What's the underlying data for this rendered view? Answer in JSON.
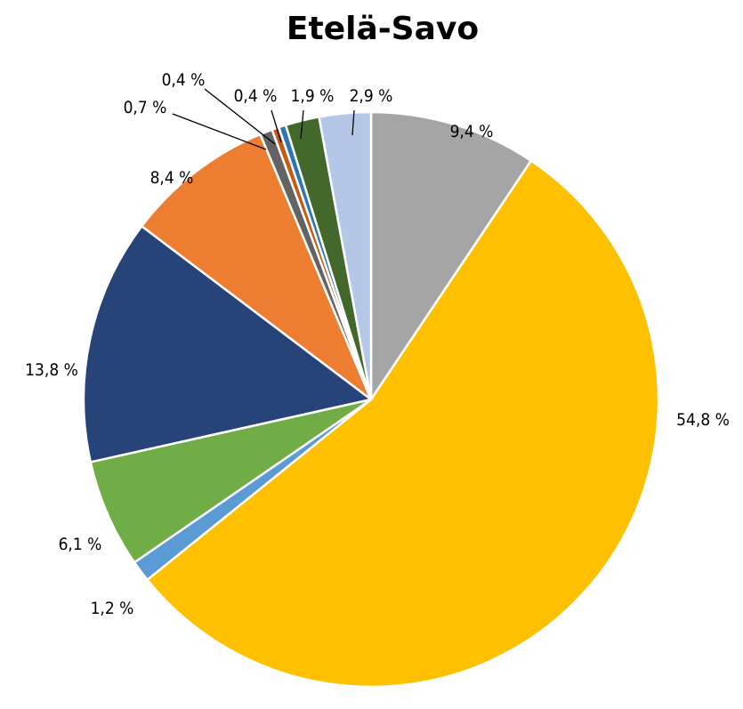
{
  "chart_data": {
    "type": "pie",
    "title": "Etelä-Savo",
    "start_angle_deg": 0,
    "direction": "clockwise",
    "slices": [
      {
        "value": 9.4,
        "label": "9,4 %",
        "color": "#a5a5a5"
      },
      {
        "value": 54.8,
        "label": "54,8 %",
        "color": "#ffc000"
      },
      {
        "value": 1.2,
        "label": "1,2 %",
        "color": "#5b9bd5"
      },
      {
        "value": 6.1,
        "label": "6,1 %",
        "color": "#70ad47"
      },
      {
        "value": 13.8,
        "label": "13,8 %",
        "color": "#264478"
      },
      {
        "value": 8.4,
        "label": "8,4 %",
        "color": "#ed7d31"
      },
      {
        "value": 0.7,
        "label": "0,7 %",
        "color": "#636363"
      },
      {
        "value": 0.4,
        "label": "0,4 %",
        "color": "#c55a11"
      },
      {
        "value": 0.4,
        "label": "0,4 %",
        "color": "#2e75b6"
      },
      {
        "value": 1.9,
        "label": "1,9 %",
        "color": "#43682b"
      },
      {
        "value": 2.9,
        "label": "2,9 %",
        "color": "#b4c7e7"
      }
    ]
  }
}
